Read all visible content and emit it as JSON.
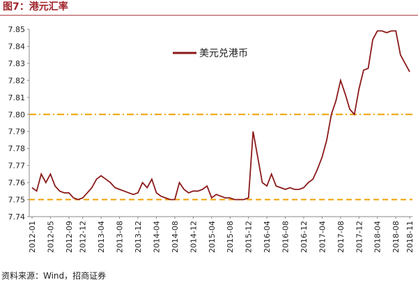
{
  "chart_data": {
    "type": "line",
    "title": "图7：港元汇率",
    "source": "资料来源：Wind，招商证券",
    "x": [
      "2012-01",
      "2012-02",
      "2012-03",
      "2012-04",
      "2012-05",
      "2012-06",
      "2012-07",
      "2012-08",
      "2012-09",
      "2012-10",
      "2012-11",
      "2012-12",
      "2013-01",
      "2013-02",
      "2013-03",
      "2013-04",
      "2013-05",
      "2013-06",
      "2013-07",
      "2013-08",
      "2013-09",
      "2013-10",
      "2013-11",
      "2013-12",
      "2014-01",
      "2014-02",
      "2014-03",
      "2014-04",
      "2014-05",
      "2014-06",
      "2014-07",
      "2014-08",
      "2014-09",
      "2014-10",
      "2014-11",
      "2014-12",
      "2015-01",
      "2015-02",
      "2015-03",
      "2015-04",
      "2015-05",
      "2015-06",
      "2015-07",
      "2015-08",
      "2015-09",
      "2015-10",
      "2015-11",
      "2015-12",
      "2016-01",
      "2016-02",
      "2016-03",
      "2016-04",
      "2016-05",
      "2016-06",
      "2016-07",
      "2016-08",
      "2016-09",
      "2016-10",
      "2016-11",
      "2016-12",
      "2017-01",
      "2017-02",
      "2017-03",
      "2017-04",
      "2017-05",
      "2017-06",
      "2017-07",
      "2017-08",
      "2017-09",
      "2017-10",
      "2017-11",
      "2017-12",
      "2018-01",
      "2018-02",
      "2018-03",
      "2018-04",
      "2018-05",
      "2018-06",
      "2018-07",
      "2018-08",
      "2018-09",
      "2018-10",
      "2018-11"
    ],
    "series": [
      {
        "name": "美元兑港币",
        "color": "#8b1a1a",
        "values": [
          7.757,
          7.755,
          7.765,
          7.76,
          7.765,
          7.758,
          7.755,
          7.754,
          7.754,
          7.751,
          7.75,
          7.751,
          7.754,
          7.757,
          7.762,
          7.764,
          7.762,
          7.76,
          7.757,
          7.756,
          7.755,
          7.754,
          7.753,
          7.754,
          7.76,
          7.757,
          7.762,
          7.754,
          7.752,
          7.751,
          7.75,
          7.75,
          7.76,
          7.756,
          7.754,
          7.755,
          7.755,
          7.756,
          7.758,
          7.751,
          7.753,
          7.752,
          7.751,
          7.751,
          7.75,
          7.75,
          7.75,
          7.751,
          7.79,
          7.775,
          7.76,
          7.758,
          7.765,
          7.758,
          7.757,
          7.756,
          7.757,
          7.756,
          7.756,
          7.757,
          7.76,
          7.762,
          7.768,
          7.775,
          7.785,
          7.8,
          7.808,
          7.82,
          7.812,
          7.803,
          7.8,
          7.815,
          7.826,
          7.827,
          7.844,
          7.849,
          7.849,
          7.848,
          7.849,
          7.849,
          7.835,
          7.83,
          7.825
        ]
      }
    ],
    "xticks": [
      "2012-01",
      "2012-05",
      "2012-09",
      "2012-12",
      "2013-04",
      "2013-08",
      "2013-12",
      "2014-04",
      "2014-08",
      "2014-12",
      "2015-04",
      "2015-08",
      "2015-12",
      "2016-04",
      "2016-08",
      "2016-12",
      "2017-04",
      "2017-08",
      "2017-12",
      "2018-04",
      "2018-08",
      "2018-11"
    ],
    "ylim": [
      7.74,
      7.85
    ],
    "yticks": [
      7.74,
      7.75,
      7.76,
      7.77,
      7.78,
      7.79,
      {
        "value": 7.8,
        "label": "7.80"
      },
      7.81,
      7.82,
      7.83,
      7.84,
      7.85
    ],
    "reference_lines": [
      {
        "value": 7.8,
        "color": "#f0a000",
        "style": "dashdot"
      },
      {
        "value": 7.75,
        "color": "#f0a000",
        "style": "dashed"
      }
    ],
    "legend": "top"
  }
}
